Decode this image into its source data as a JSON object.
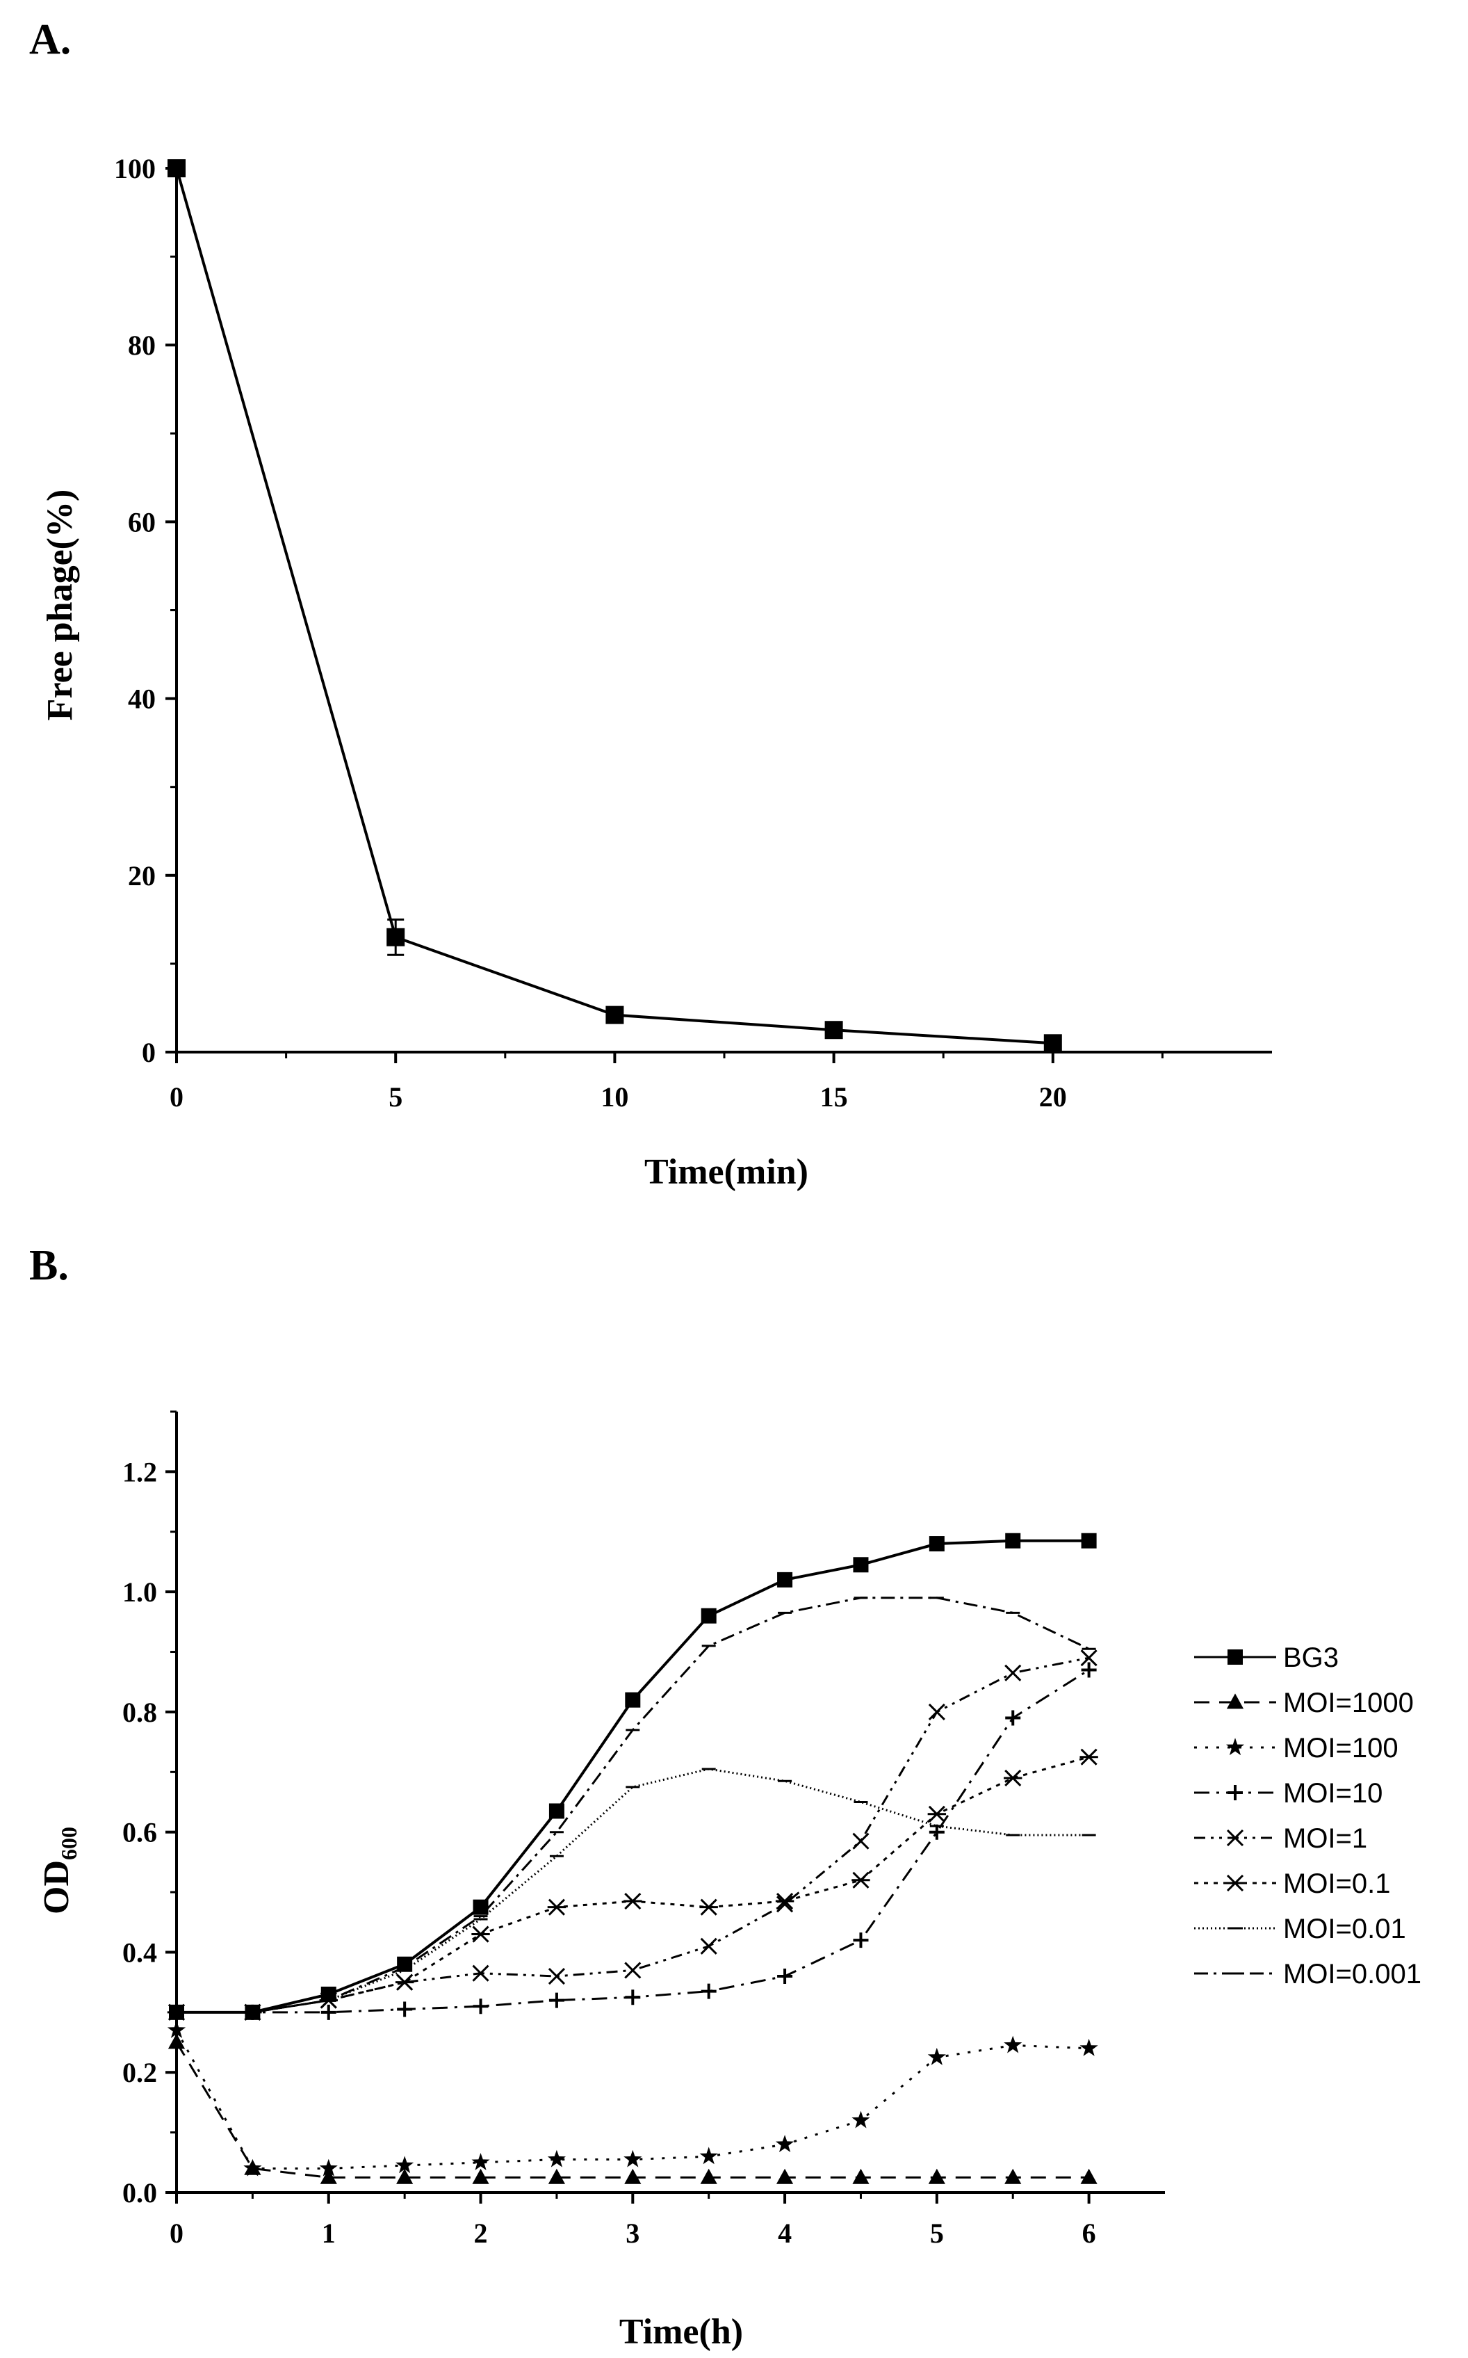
{
  "panels": {
    "a": "A.",
    "b": "B."
  },
  "chart_data": [
    {
      "type": "line",
      "xlabel": "Time(min)",
      "ylabel": "Free phage(%)",
      "xlim": [
        0,
        25
      ],
      "ylim": [
        0,
        100
      ],
      "xticks": [
        0,
        5,
        10,
        15,
        20
      ],
      "yticks": [
        0,
        20,
        40,
        60,
        80,
        100
      ],
      "x": [
        0,
        5,
        10,
        15,
        20
      ],
      "series": [
        {
          "name": "",
          "values": [
            100,
            13,
            4.2,
            2.5,
            1.0
          ],
          "errors": [
            0,
            2.0,
            0.8,
            0.5,
            0.3
          ],
          "color": "#000000"
        }
      ],
      "grid": false
    },
    {
      "type": "line",
      "xlabel": "Time(h)",
      "ylabel": "OD600",
      "ylabel_main": "OD",
      "ylabel_sub": "600",
      "xlim": [
        0,
        6.5
      ],
      "ylim": [
        0,
        1.3
      ],
      "xticks": [
        0,
        1,
        2,
        3,
        4,
        5,
        6
      ],
      "yticks": [
        0.0,
        0.2,
        0.4,
        0.6,
        0.8,
        1.0,
        1.2
      ],
      "ytick_labels": [
        "0.0",
        "0.2",
        "0.4",
        "0.6",
        "0.8",
        "1.0",
        "1.2"
      ],
      "x": [
        0,
        0.5,
        1,
        1.5,
        2,
        2.5,
        3,
        3.5,
        4,
        4.5,
        5,
        5.5,
        6
      ],
      "legend_position": "right",
      "grid": false,
      "series": [
        {
          "name": "BG3",
          "marker": "square",
          "dash": "",
          "values": [
            0.3,
            0.3,
            0.33,
            0.38,
            0.475,
            0.635,
            0.82,
            0.96,
            1.02,
            1.045,
            1.08,
            1.085,
            1.085
          ]
        },
        {
          "name": "MOI=1000",
          "marker": "triangle",
          "dash": "22,14",
          "values": [
            0.25,
            0.04,
            0.025,
            0.025,
            0.025,
            0.025,
            0.025,
            0.025,
            0.025,
            0.025,
            0.025,
            0.025,
            0.025
          ]
        },
        {
          "name": "MOI=100",
          "marker": "star",
          "dash": "4,12",
          "values": [
            0.27,
            0.04,
            0.04,
            0.045,
            0.05,
            0.055,
            0.055,
            0.06,
            0.08,
            0.12,
            0.225,
            0.245,
            0.24
          ]
        },
        {
          "name": "MOI=10",
          "marker": "plus",
          "dash": "22,10,4,10",
          "values": [
            0.3,
            0.3,
            0.3,
            0.305,
            0.31,
            0.32,
            0.325,
            0.335,
            0.36,
            0.42,
            0.6,
            0.79,
            0.87
          ]
        },
        {
          "name": "MOI=1",
          "marker": "cross",
          "dash": "16,8,4,8,4,8",
          "values": [
            0.3,
            0.3,
            0.32,
            0.35,
            0.365,
            0.36,
            0.37,
            0.41,
            0.48,
            0.585,
            0.8,
            0.865,
            0.89
          ]
        },
        {
          "name": "MOI=0.1",
          "marker": "asterisk",
          "dash": "6,8",
          "values": [
            0.3,
            0.3,
            0.32,
            0.35,
            0.43,
            0.475,
            0.485,
            0.475,
            0.485,
            0.52,
            0.63,
            0.69,
            0.725
          ]
        },
        {
          "name": "MOI=0.01",
          "marker": "dash",
          "dash": "2,4",
          "values": [
            0.3,
            0.3,
            0.32,
            0.37,
            0.455,
            0.56,
            0.675,
            0.705,
            0.685,
            0.65,
            0.61,
            0.595,
            0.595
          ]
        },
        {
          "name": "MOI=0.001",
          "marker": "dash",
          "dash": "20,8,4,8",
          "values": [
            0.3,
            0.3,
            0.32,
            0.375,
            0.46,
            0.6,
            0.77,
            0.91,
            0.965,
            0.99,
            0.99,
            0.965,
            0.905
          ]
        }
      ]
    }
  ]
}
